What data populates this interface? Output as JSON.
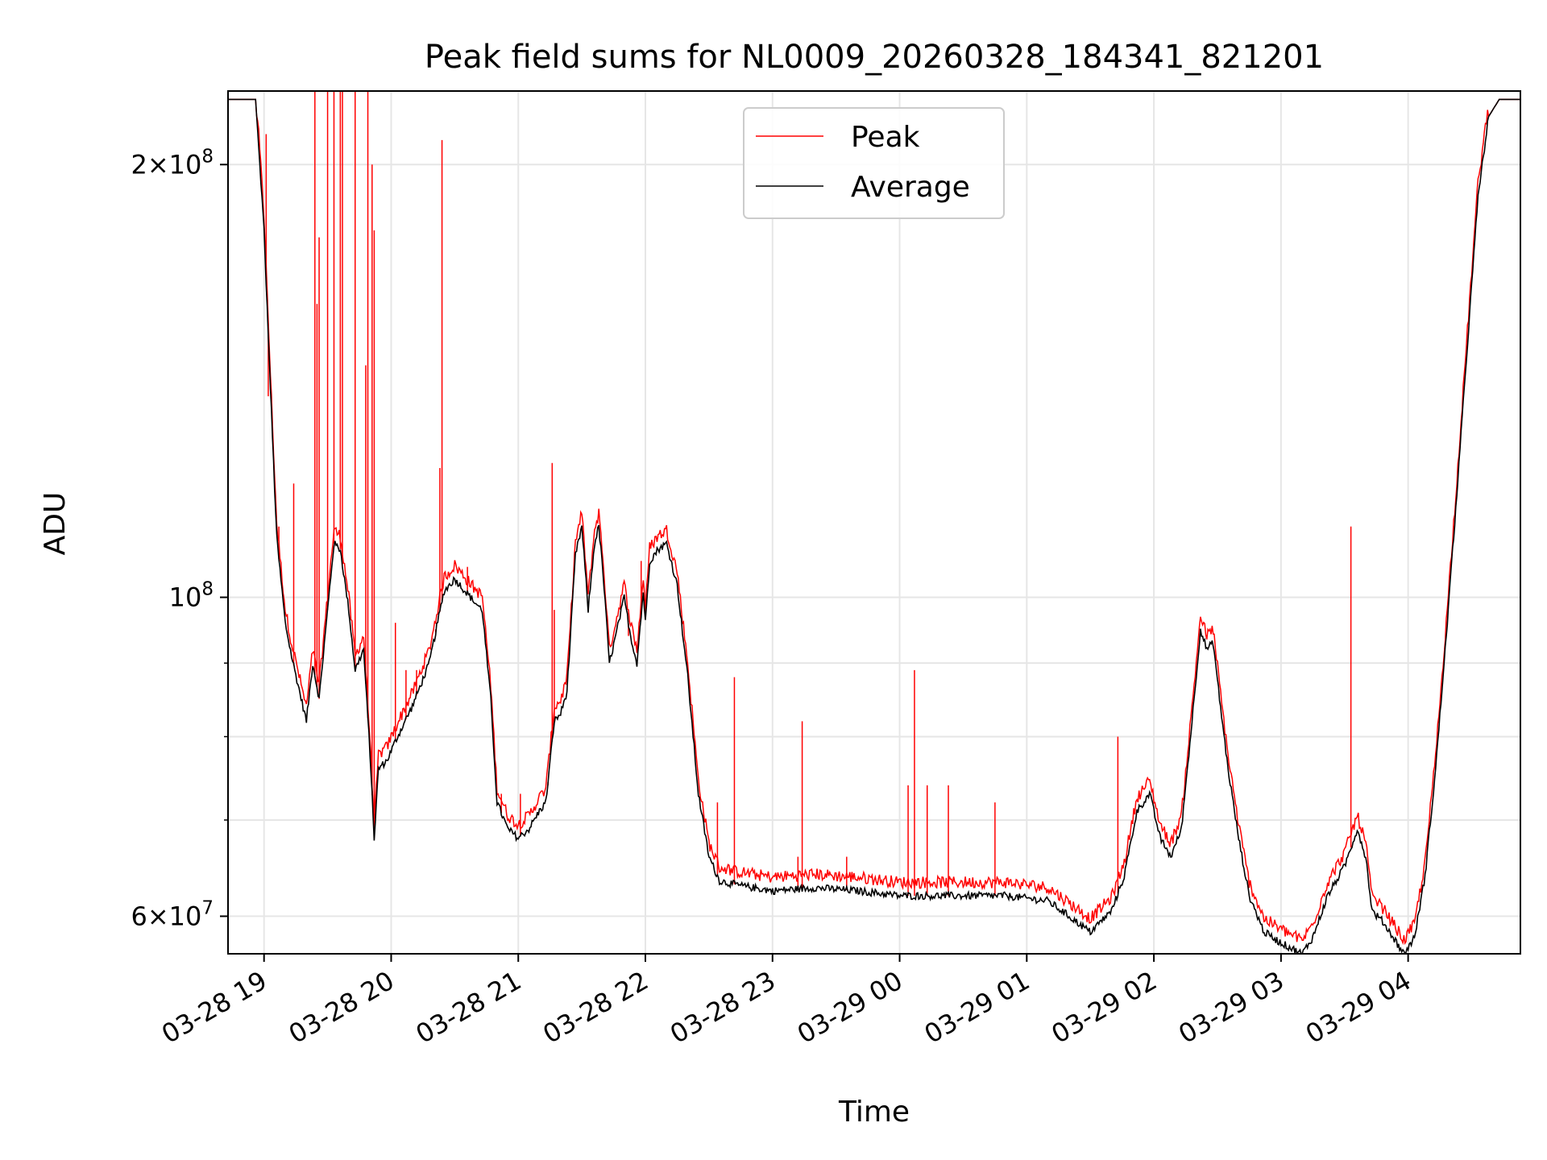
{
  "chart_data": {
    "type": "line",
    "title": "Peak field sums for NL0009_20260328_184341_821201",
    "xlabel": "Time",
    "ylabel": "ADU",
    "yscale": "log",
    "grid": true,
    "legend_position": "top-center",
    "x_tick_labels": [
      "03-28 19",
      "03-28 20",
      "03-28 21",
      "03-28 22",
      "03-28 23",
      "03-29 00",
      "03-29 01",
      "03-29 02",
      "03-29 03",
      "03-29 04"
    ],
    "y_tick_labels": [
      {
        "value": 60000000,
        "mantissa": "6",
        "exp": "7"
      },
      {
        "value": 100000000,
        "mantissa": "",
        "exp": "8"
      },
      {
        "value": 200000000,
        "mantissa": "2",
        "exp": "8"
      }
    ],
    "xlim": [
      "2026-03-28 18:43",
      "2026-03-29 04:53"
    ],
    "ylim": [
      56500000,
      225000000
    ],
    "colors": {
      "peak": "#ff0000",
      "average": "#000000",
      "grid": "#e6e6e6"
    },
    "series": [
      {
        "name": "Average",
        "color": "#000000",
        "points": [
          [
            "2026-03-28 18:43",
            222000000.0
          ],
          [
            "2026-03-28 18:56",
            222000000.0
          ],
          [
            "2026-03-28 19:00",
            180000000.0
          ],
          [
            "2026-03-28 19:03",
            140000000.0
          ],
          [
            "2026-03-28 19:06",
            110000000.0
          ],
          [
            "2026-03-28 19:10",
            96000000.0
          ],
          [
            "2026-03-28 19:13",
            91000000.0
          ],
          [
            "2026-03-28 19:16",
            87000000.0
          ],
          [
            "2026-03-28 19:20",
            82000000.0
          ],
          [
            "2026-03-28 19:23",
            90000000.0
          ],
          [
            "2026-03-28 19:26",
            85000000.0
          ],
          [
            "2026-03-28 19:30",
            98000000.0
          ],
          [
            "2026-03-28 19:33",
            109000000.0
          ],
          [
            "2026-03-28 19:36",
            108000000.0
          ],
          [
            "2026-03-28 19:40",
            98000000.0
          ],
          [
            "2026-03-28 19:43",
            89000000.0
          ],
          [
            "2026-03-28 19:47",
            92000000.0
          ],
          [
            "2026-03-28 19:50",
            78000000.0
          ],
          [
            "2026-03-28 19:52",
            68000000.0
          ],
          [
            "2026-03-28 19:54",
            76000000.0
          ],
          [
            "2026-03-28 19:58",
            77000000.0
          ],
          [
            "2026-03-28 20:03",
            80000000.0
          ],
          [
            "2026-03-28 20:10",
            84000000.0
          ],
          [
            "2026-03-28 20:18",
            90000000.0
          ],
          [
            "2026-03-28 20:25",
            101000000.0
          ],
          [
            "2026-03-28 20:30",
            103000000.0
          ],
          [
            "2026-03-28 20:35",
            101000000.0
          ],
          [
            "2026-03-28 20:40",
            99000000.0
          ],
          [
            "2026-03-28 20:43",
            98000000.0
          ],
          [
            "2026-03-28 20:47",
            85000000.0
          ],
          [
            "2026-03-28 20:50",
            72000000.0
          ],
          [
            "2026-03-28 20:55",
            69000000.0
          ],
          [
            "2026-03-28 21:00",
            68000000.0
          ],
          [
            "2026-03-28 21:05",
            69000000.0
          ],
          [
            "2026-03-28 21:10",
            71000000.0
          ],
          [
            "2026-03-28 21:13",
            72000000.0
          ],
          [
            "2026-03-28 21:17",
            82000000.0
          ],
          [
            "2026-03-28 21:20",
            83000000.0
          ],
          [
            "2026-03-28 21:23",
            86000000.0
          ],
          [
            "2026-03-28 21:27",
            107000000.0
          ],
          [
            "2026-03-28 21:30",
            112000000.0
          ],
          [
            "2026-03-28 21:33",
            98000000.0
          ],
          [
            "2026-03-28 21:36",
            109000000.0
          ],
          [
            "2026-03-28 21:38",
            112000000.0
          ],
          [
            "2026-03-28 21:40",
            104000000.0
          ],
          [
            "2026-03-28 21:43",
            90000000.0
          ],
          [
            "2026-03-28 21:46",
            94000000.0
          ],
          [
            "2026-03-28 21:50",
            100000000.0
          ],
          [
            "2026-03-28 21:53",
            94000000.0
          ],
          [
            "2026-03-28 21:56",
            90000000.0
          ],
          [
            "2026-03-28 21:59",
            101000000.0
          ],
          [
            "2026-03-28 22:00",
            96000000.0
          ],
          [
            "2026-03-28 22:02",
            106000000.0
          ],
          [
            "2026-03-28 22:06",
            108000000.0
          ],
          [
            "2026-03-28 22:10",
            109000000.0
          ],
          [
            "2026-03-28 22:15",
            102000000.0
          ],
          [
            "2026-03-28 22:20",
            88000000.0
          ],
          [
            "2026-03-28 22:25",
            73000000.0
          ],
          [
            "2026-03-28 22:30",
            66000000.0
          ],
          [
            "2026-03-28 22:35",
            63500000.0
          ],
          [
            "2026-03-28 22:45",
            63000000.0
          ],
          [
            "2026-03-28 23:00",
            62500000.0
          ],
          [
            "2026-03-28 23:20",
            62800000.0
          ],
          [
            "2026-03-28 23:40",
            62500000.0
          ],
          [
            "2026-03-29 00:00",
            62000000.0
          ],
          [
            "2026-03-29 00:30",
            62000000.0
          ],
          [
            "2026-03-29 00:50",
            62000000.0
          ],
          [
            "2026-03-29 01:10",
            61500000.0
          ],
          [
            "2026-03-29 01:20",
            60000000.0
          ],
          [
            "2026-03-29 01:30",
            58500000.0
          ],
          [
            "2026-03-29 01:35",
            59500000.0
          ],
          [
            "2026-03-29 01:40",
            60500000.0
          ],
          [
            "2026-03-29 01:46",
            64000000.0
          ],
          [
            "2026-03-29 01:52",
            71000000.0
          ],
          [
            "2026-03-29 01:58",
            73000000.0
          ],
          [
            "2026-03-29 02:03",
            68000000.0
          ],
          [
            "2026-03-29 02:08",
            66000000.0
          ],
          [
            "2026-03-29 02:13",
            69000000.0
          ],
          [
            "2026-03-29 02:18",
            82000000.0
          ],
          [
            "2026-03-29 02:22",
            95000000.0
          ],
          [
            "2026-03-29 02:25",
            92000000.0
          ],
          [
            "2026-03-29 02:28",
            93000000.0
          ],
          [
            "2026-03-29 02:31",
            85000000.0
          ],
          [
            "2026-03-29 02:35",
            76000000.0
          ],
          [
            "2026-03-29 02:40",
            68000000.0
          ],
          [
            "2026-03-29 02:45",
            62000000.0
          ],
          [
            "2026-03-29 02:52",
            58500000.0
          ],
          [
            "2026-03-29 03:00",
            57500000.0
          ],
          [
            "2026-03-29 03:10",
            56500000.0
          ],
          [
            "2026-03-29 03:15",
            58000000.0
          ],
          [
            "2026-03-29 03:22",
            62000000.0
          ],
          [
            "2026-03-29 03:30",
            65000000.0
          ],
          [
            "2026-03-29 03:36",
            69000000.0
          ],
          [
            "2026-03-29 03:40",
            66000000.0
          ],
          [
            "2026-03-29 03:43",
            60500000.0
          ],
          [
            "2026-03-29 03:48",
            59500000.0
          ],
          [
            "2026-03-29 03:53",
            58000000.0
          ],
          [
            "2026-03-29 03:58",
            56500000.0
          ],
          [
            "2026-03-29 04:03",
            58000000.0
          ],
          [
            "2026-03-29 04:08",
            64000000.0
          ],
          [
            "2026-03-29 04:13",
            76000000.0
          ],
          [
            "2026-03-29 04:18",
            94000000.0
          ],
          [
            "2026-03-29 04:23",
            118000000.0
          ],
          [
            "2026-03-29 04:28",
            150000000.0
          ],
          [
            "2026-03-29 04:33",
            190000000.0
          ],
          [
            "2026-03-29 04:38",
            216000000.0
          ],
          [
            "2026-03-29 04:43",
            222000000.0
          ],
          [
            "2026-03-29 04:53",
            222000000.0
          ]
        ]
      },
      {
        "name": "Peak",
        "color": "#ff0000",
        "offset_factor": 1.018,
        "spikes": [
          [
            "2026-03-28 19:01",
            210000000.0
          ],
          [
            "2026-03-28 19:02",
            138000000.0
          ],
          [
            "2026-03-28 19:07",
            112000000.0
          ],
          [
            "2026-03-28 19:14",
            120000000.0
          ],
          [
            "2026-03-28 19:24",
            225000000.0
          ],
          [
            "2026-03-28 19:25",
            160000000.0
          ],
          [
            "2026-03-28 19:26",
            178000000.0
          ],
          [
            "2026-03-28 19:30",
            225000000.0
          ],
          [
            "2026-03-28 19:33",
            225000000.0
          ],
          [
            "2026-03-28 19:36",
            225000000.0
          ],
          [
            "2026-03-28 19:37",
            225000000.0
          ],
          [
            "2026-03-28 19:43",
            225000000.0
          ],
          [
            "2026-03-28 19:48",
            145000000.0
          ],
          [
            "2026-03-28 19:49",
            225000000.0
          ],
          [
            "2026-03-28 19:51",
            200000000.0
          ],
          [
            "2026-03-28 19:52",
            180000000.0
          ],
          [
            "2026-03-28 20:02",
            96000000.0
          ],
          [
            "2026-03-28 20:07",
            89000000.0
          ],
          [
            "2026-03-28 20:12",
            89000000.0
          ],
          [
            "2026-03-28 20:21",
            95000000.0
          ],
          [
            "2026-03-28 20:23",
            123000000.0
          ],
          [
            "2026-03-28 20:24",
            208000000.0
          ],
          [
            "2026-03-28 20:36",
            105000000.0
          ],
          [
            "2026-03-28 20:52",
            73000000.0
          ],
          [
            "2026-03-28 21:01",
            73000000.0
          ],
          [
            "2026-03-28 21:14",
            74000000.0
          ],
          [
            "2026-03-28 21:16",
            124000000.0
          ],
          [
            "2026-03-28 21:17",
            98000000.0
          ],
          [
            "2026-03-28 21:52",
            94000000.0
          ],
          [
            "2026-03-28 21:58",
            106000000.0
          ],
          [
            "2026-03-28 22:34",
            72000000.0
          ],
          [
            "2026-03-28 22:42",
            88000000.0
          ],
          [
            "2026-03-28 23:12",
            66000000.0
          ],
          [
            "2026-03-28 23:14",
            82000000.0
          ],
          [
            "2026-03-28 23:35",
            66000000.0
          ],
          [
            "2026-03-29 00:04",
            74000000.0
          ],
          [
            "2026-03-29 00:07",
            89000000.0
          ],
          [
            "2026-03-29 00:13",
            74000000.0
          ],
          [
            "2026-03-29 00:23",
            74000000.0
          ],
          [
            "2026-03-29 00:45",
            72000000.0
          ],
          [
            "2026-03-29 01:43",
            80000000.0
          ],
          [
            "2026-03-29 03:33",
            112000000.0
          ]
        ]
      }
    ]
  }
}
